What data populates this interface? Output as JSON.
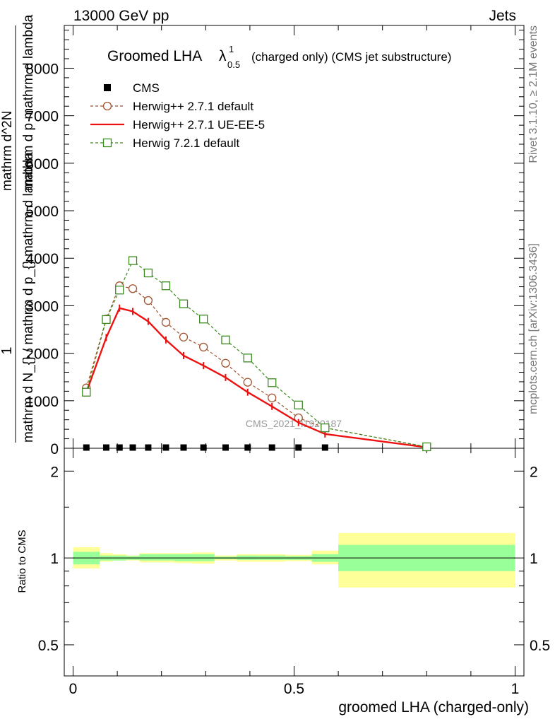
{
  "header": {
    "left": "13000 GeV pp",
    "right": "Jets",
    "side_top": "Rivet 3.1.10, ≥ 2.1M events",
    "side_bottom": "mcplots.cern.ch [arXiv:1306.3436]",
    "watermark": "CMS_2021_I1920187"
  },
  "chart_data": {
    "type": "line",
    "title_main": "Groomed LHA",
    "title_symbol": "λ",
    "title_sup": "1",
    "title_sub": "0.5",
    "title_rest": "(charged only) (CMS jet substructure)",
    "ylabel_top": "1",
    "ylabel_lower": "mathrm d N_{} / mathrm d p_{} mathrm d lambda",
    "ylabel_upper": "mathrm d^2N",
    "ylabel_overlay": "mathrm d p mathrm d lambda",
    "xlabel": "groomed LHA (charged-only)",
    "ratio_ylabel": "Ratio to CMS",
    "xlim": [
      -0.02,
      1.02
    ],
    "ylim": [
      0,
      8900
    ],
    "yticks": [
      {
        "v": 0,
        "label": "0"
      },
      {
        "v": 1000,
        "label": "1000"
      },
      {
        "v": 2000,
        "label": "2000"
      },
      {
        "v": 3000,
        "label": "3000"
      },
      {
        "v": 4000,
        "label": "4000"
      },
      {
        "v": 5000,
        "label": "5000"
      },
      {
        "v": 6000,
        "label": "6000"
      },
      {
        "v": 7000,
        "label": "7000"
      },
      {
        "v": 8000,
        "label": "8000"
      }
    ],
    "xticks": [
      {
        "v": 0,
        "label": "0"
      },
      {
        "v": 0.5,
        "label": "0.5"
      },
      {
        "v": 1,
        "label": "1"
      }
    ],
    "ratio_ylim": [
      0.39,
      2.4
    ],
    "ratio_yticks": [
      {
        "v": 0.5,
        "label": "0.5"
      },
      {
        "v": 1,
        "label": "1"
      },
      {
        "v": 2,
        "label": "2"
      }
    ],
    "cms_x": [
      0.03,
      0.075,
      0.105,
      0.135,
      0.17,
      0.21,
      0.25,
      0.295,
      0.345,
      0.395,
      0.45,
      0.51,
      0.57
    ],
    "cms_y": [
      0,
      0,
      0,
      0,
      0,
      0,
      0,
      0,
      0,
      0,
      0,
      0,
      0
    ],
    "series": [
      {
        "name": "Herwig++ 2.7.1 default",
        "color": "#a0522d",
        "style": "dashed",
        "marker": "circle",
        "x": [
          0.03,
          0.075,
          0.105,
          0.135,
          0.17,
          0.21,
          0.25,
          0.295,
          0.345,
          0.395,
          0.45,
          0.51,
          0.57,
          0.8
        ],
        "y": [
          1270,
          2720,
          3420,
          3360,
          3110,
          2650,
          2340,
          2130,
          1790,
          1390,
          1060,
          640,
          430,
          30
        ]
      },
      {
        "name": "Herwig++ 2.7.1 UE-EE-5",
        "color": "#ee1111",
        "style": "solid",
        "marker": "none",
        "x": [
          0.03,
          0.075,
          0.105,
          0.135,
          0.17,
          0.21,
          0.25,
          0.295,
          0.345,
          0.395,
          0.45,
          0.51,
          0.57,
          0.8
        ],
        "y": [
          1180,
          2330,
          2950,
          2880,
          2670,
          2280,
          1950,
          1740,
          1490,
          1180,
          880,
          540,
          300,
          20
        ]
      },
      {
        "name": "Herwig 7.2.1 default",
        "color": "#3a8a1e",
        "style": "dashed",
        "marker": "square",
        "x": [
          0.03,
          0.075,
          0.105,
          0.135,
          0.17,
          0.21,
          0.25,
          0.295,
          0.345,
          0.395,
          0.45,
          0.51,
          0.57,
          0.8
        ],
        "y": [
          1180,
          2710,
          3330,
          3950,
          3690,
          3420,
          3040,
          2720,
          2280,
          1900,
          1380,
          910,
          430,
          30
        ]
      }
    ],
    "ratio_bands": [
      {
        "x0": 0.0,
        "x1": 0.06,
        "green": [
          0.95,
          1.05
        ],
        "yellow": [
          0.92,
          1.09
        ]
      },
      {
        "x0": 0.06,
        "x1": 0.09,
        "green": [
          0.98,
          1.02
        ],
        "yellow": [
          0.97,
          1.04
        ]
      },
      {
        "x0": 0.09,
        "x1": 0.12,
        "green": [
          0.98,
          1.02
        ],
        "yellow": [
          0.98,
          1.03
        ]
      },
      {
        "x0": 0.12,
        "x1": 0.15,
        "green": [
          0.985,
          1.015
        ],
        "yellow": [
          0.98,
          1.02
        ]
      },
      {
        "x0": 0.15,
        "x1": 0.19,
        "green": [
          0.98,
          1.03
        ],
        "yellow": [
          0.965,
          1.04
        ]
      },
      {
        "x0": 0.19,
        "x1": 0.23,
        "green": [
          0.98,
          1.03
        ],
        "yellow": [
          0.965,
          1.04
        ]
      },
      {
        "x0": 0.23,
        "x1": 0.27,
        "green": [
          0.975,
          1.03
        ],
        "yellow": [
          0.96,
          1.04
        ]
      },
      {
        "x0": 0.27,
        "x1": 0.32,
        "green": [
          0.975,
          1.03
        ],
        "yellow": [
          0.955,
          1.045
        ]
      },
      {
        "x0": 0.32,
        "x1": 0.37,
        "green": [
          0.99,
          1.01
        ],
        "yellow": [
          0.98,
          1.02
        ]
      },
      {
        "x0": 0.37,
        "x1": 0.42,
        "green": [
          0.985,
          1.02
        ],
        "yellow": [
          0.97,
          1.03
        ]
      },
      {
        "x0": 0.42,
        "x1": 0.48,
        "green": [
          0.985,
          1.02
        ],
        "yellow": [
          0.97,
          1.03
        ]
      },
      {
        "x0": 0.48,
        "x1": 0.54,
        "green": [
          0.985,
          1.015
        ],
        "yellow": [
          0.975,
          1.025
        ]
      },
      {
        "x0": 0.54,
        "x1": 0.6,
        "green": [
          0.97,
          1.03
        ],
        "yellow": [
          0.95,
          1.06
        ]
      },
      {
        "x0": 0.6,
        "x1": 1.0,
        "green": [
          0.9,
          1.11
        ],
        "yellow": [
          0.79,
          1.22
        ]
      }
    ]
  }
}
